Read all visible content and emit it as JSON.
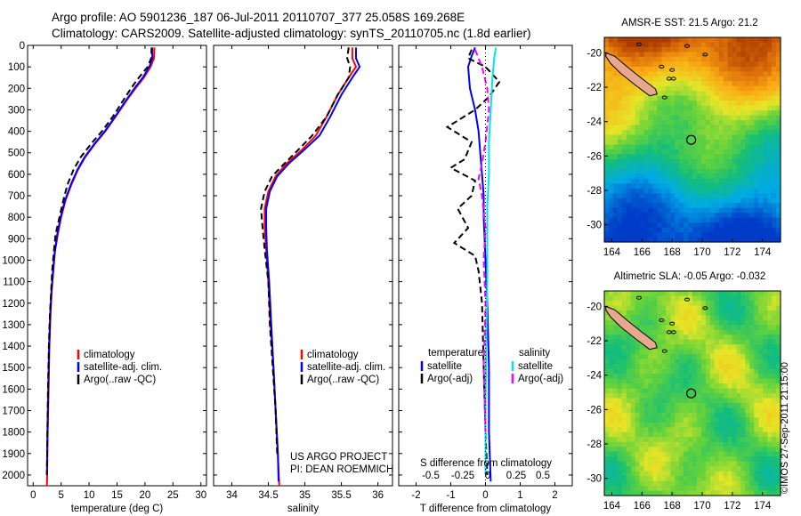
{
  "header": {
    "line1": "Argo profile: AO 5901236_187 06-Jul-2011 20110707_377 25.058S 169.268E",
    "line2": "Climatology: CARS2009. Satellite-adjusted climatology: synTS_20110705.nc (1.8d earlier)"
  },
  "credit": "©IMOS 27-Sep-2011 21:15:00",
  "colors": {
    "climatology": "#ff0000",
    "satellite": "#0000ff",
    "argo": "#000000",
    "salinity_satellite": "#00e5ee",
    "salinity_argo": "#ff00ff",
    "land": "#e8a890"
  },
  "chart_data": [
    {
      "type": "line",
      "panel": "temperature",
      "xlabel": "temperature (deg C)",
      "ylabel": "",
      "xlim": [
        -1,
        31
      ],
      "ylim": [
        2050,
        0
      ],
      "xticks": [
        "0",
        "5",
        "10",
        "15",
        "20",
        "25",
        "30"
      ],
      "yticks": [
        "0",
        "100",
        "200",
        "300",
        "400",
        "500",
        "600",
        "700",
        "800",
        "900",
        "1000",
        "1100",
        "1200",
        "1300",
        "1400",
        "1500",
        "1600",
        "1700",
        "1800",
        "1900",
        "2000"
      ],
      "legend": [
        "climatology",
        "satellite-adj. clim.",
        "Argo(..raw -QC)"
      ],
      "series": [
        {
          "name": "climatology",
          "style": "solid",
          "points": [
            [
              21.7,
              10
            ],
            [
              21.6,
              60
            ],
            [
              21.0,
              100
            ],
            [
              19.8,
              150
            ],
            [
              18.3,
              200
            ],
            [
              16.6,
              260
            ],
            [
              14.8,
              330
            ],
            [
              12.9,
              400
            ],
            [
              11.0,
              460
            ],
            [
              9.3,
              520
            ],
            [
              8.0,
              580
            ],
            [
              6.8,
              650
            ],
            [
              5.8,
              720
            ],
            [
              5.0,
              800
            ],
            [
              4.4,
              880
            ],
            [
              3.9,
              960
            ],
            [
              3.6,
              1050
            ],
            [
              3.3,
              1150
            ],
            [
              3.1,
              1250
            ],
            [
              2.9,
              1400
            ],
            [
              2.75,
              1600
            ],
            [
              2.6,
              1800
            ],
            [
              2.5,
              2000
            ],
            [
              2.45,
              2050
            ]
          ]
        },
        {
          "name": "satellite-adj. clim.",
          "style": "solid",
          "points": [
            [
              21.3,
              10
            ],
            [
              21.3,
              60
            ],
            [
              20.8,
              100
            ],
            [
              19.6,
              150
            ],
            [
              18.1,
              200
            ],
            [
              16.5,
              260
            ],
            [
              14.7,
              330
            ],
            [
              12.8,
              400
            ],
            [
              10.9,
              460
            ],
            [
              9.2,
              520
            ],
            [
              7.9,
              580
            ],
            [
              6.7,
              650
            ],
            [
              5.7,
              720
            ],
            [
              4.9,
              800
            ],
            [
              4.3,
              880
            ],
            [
              3.85,
              960
            ],
            [
              3.55,
              1050
            ],
            [
              3.25,
              1150
            ],
            [
              3.05,
              1250
            ],
            [
              2.85,
              1400
            ],
            [
              2.7,
              1600
            ],
            [
              2.55,
              1800
            ],
            [
              2.45,
              2000
            ]
          ]
        },
        {
          "name": "Argo(..raw -QC)",
          "style": "dashed",
          "points": [
            [
              21.2,
              10
            ],
            [
              21.1,
              60
            ],
            [
              20.5,
              100
            ],
            [
              18.9,
              150
            ],
            [
              17.5,
              200
            ],
            [
              16.0,
              260
            ],
            [
              14.3,
              330
            ],
            [
              12.3,
              400
            ],
            [
              10.3,
              460
            ],
            [
              8.5,
              520
            ],
            [
              7.2,
              580
            ],
            [
              6.1,
              650
            ],
            [
              5.4,
              720
            ],
            [
              4.7,
              800
            ],
            [
              4.0,
              880
            ],
            [
              3.7,
              960
            ],
            [
              3.4,
              1050
            ],
            [
              3.2,
              1150
            ],
            [
              3.0,
              1250
            ],
            [
              2.8,
              1400
            ],
            [
              2.65,
              1600
            ],
            [
              2.55,
              1800
            ],
            [
              2.45,
              2000
            ]
          ]
        }
      ]
    },
    {
      "type": "line",
      "panel": "salinity",
      "xlabel": "salinity",
      "xlim": [
        33.75,
        36.2
      ],
      "ylim": [
        2050,
        0
      ],
      "xticks": [
        "34",
        "34.5",
        "35",
        "35.5",
        "36"
      ],
      "legend": [
        "climatology",
        "satellite-adj. clim.",
        "Argo(..raw -QC)"
      ],
      "annotation": [
        "US ARGO PROJECT",
        "PI: DEAN ROEMMICH"
      ],
      "series": [
        {
          "name": "climatology",
          "style": "solid",
          "points": [
            [
              35.65,
              10
            ],
            [
              35.65,
              60
            ],
            [
              35.7,
              100
            ],
            [
              35.6,
              150
            ],
            [
              35.45,
              230
            ],
            [
              35.3,
              330
            ],
            [
              35.15,
              420
            ],
            [
              34.95,
              490
            ],
            [
              34.75,
              550
            ],
            [
              34.6,
              610
            ],
            [
              34.5,
              680
            ],
            [
              34.45,
              760
            ],
            [
              34.45,
              850
            ],
            [
              34.47,
              950
            ],
            [
              34.5,
              1100
            ],
            [
              34.53,
              1300
            ],
            [
              34.57,
              1500
            ],
            [
              34.6,
              1700
            ],
            [
              34.63,
              1900
            ],
            [
              34.65,
              2050
            ]
          ]
        },
        {
          "name": "satellite-adj. clim.",
          "style": "solid",
          "points": [
            [
              35.7,
              10
            ],
            [
              35.7,
              60
            ],
            [
              35.75,
              100
            ],
            [
              35.65,
              150
            ],
            [
              35.5,
              230
            ],
            [
              35.35,
              330
            ],
            [
              35.2,
              420
            ],
            [
              34.98,
              490
            ],
            [
              34.78,
              550
            ],
            [
              34.62,
              610
            ],
            [
              34.52,
              680
            ],
            [
              34.47,
              760
            ],
            [
              34.47,
              850
            ],
            [
              34.48,
              950
            ],
            [
              34.51,
              1100
            ],
            [
              34.54,
              1300
            ],
            [
              34.57,
              1500
            ],
            [
              34.6,
              1700
            ],
            [
              34.63,
              1900
            ],
            [
              34.64,
              2030
            ]
          ]
        },
        {
          "name": "Argo(..raw -QC)",
          "style": "dashed",
          "points": [
            [
              35.6,
              10
            ],
            [
              35.58,
              60
            ],
            [
              35.62,
              100
            ],
            [
              35.6,
              150
            ],
            [
              35.45,
              230
            ],
            [
              35.3,
              330
            ],
            [
              35.1,
              420
            ],
            [
              34.9,
              490
            ],
            [
              34.72,
              550
            ],
            [
              34.55,
              610
            ],
            [
              34.45,
              680
            ],
            [
              34.4,
              760
            ],
            [
              34.42,
              850
            ],
            [
              34.45,
              950
            ],
            [
              34.5,
              1100
            ],
            [
              34.52,
              1300
            ],
            [
              34.56,
              1500
            ],
            [
              34.6,
              1700
            ],
            [
              34.62,
              1900
            ]
          ]
        }
      ]
    },
    {
      "type": "line",
      "panel": "difference",
      "xlabel": "T difference from climatology",
      "xlabel2": "S difference from climatology",
      "xlim": [
        -2.5,
        2.5
      ],
      "ylim": [
        2050,
        0
      ],
      "xticks": [
        "-2",
        "-1",
        "0",
        "1",
        "2"
      ],
      "xticks_s": [
        "-0.5",
        "-0.25",
        "0",
        "0.25",
        "0.5"
      ],
      "legend_groups": [
        {
          "heading": "temperature",
          "items": [
            "satellite",
            "Argo(-adj)"
          ]
        },
        {
          "heading": "salinity",
          "items": [
            "satellite",
            "Argo(-adj)"
          ]
        }
      ],
      "series": [
        {
          "name": "T satellite",
          "style": "solid",
          "points": [
            [
              -0.3,
              10
            ],
            [
              -0.4,
              50
            ],
            [
              -0.5,
              100
            ],
            [
              -0.45,
              200
            ],
            [
              -0.3,
              300
            ],
            [
              -0.2,
              400
            ],
            [
              -0.15,
              500
            ],
            [
              -0.1,
              600
            ],
            [
              -0.05,
              700
            ],
            [
              -0.05,
              800
            ],
            [
              0.0,
              1000
            ],
            [
              0.05,
              1200
            ],
            [
              0.1,
              1500
            ],
            [
              0.1,
              1800
            ],
            [
              0.15,
              2030
            ]
          ]
        },
        {
          "name": "T Argo(-adj)",
          "style": "dashed",
          "points": [
            [
              -0.4,
              20
            ],
            [
              -0.5,
              60
            ],
            [
              0.0,
              100
            ],
            [
              0.4,
              170
            ],
            [
              0.1,
              240
            ],
            [
              -0.3,
              300
            ],
            [
              -1.1,
              380
            ],
            [
              -0.4,
              450
            ],
            [
              -0.6,
              530
            ],
            [
              -1.0,
              570
            ],
            [
              -0.3,
              630
            ],
            [
              -0.4,
              700
            ],
            [
              -0.8,
              760
            ],
            [
              -0.5,
              850
            ],
            [
              -0.9,
              920
            ],
            [
              -0.3,
              980
            ],
            [
              -0.2,
              1050
            ],
            [
              -0.1,
              1200
            ],
            [
              -0.05,
              1500
            ],
            [
              0.0,
              1800
            ],
            [
              0.05,
              2000
            ]
          ]
        },
        {
          "name": "S satellite",
          "style": "solid",
          "points": [
            [
              0.3,
              10
            ],
            [
              0.25,
              60
            ],
            [
              0.2,
              150
            ],
            [
              0.15,
              300
            ],
            [
              0.1,
              450
            ],
            [
              0.1,
              600
            ],
            [
              0.05,
              750
            ],
            [
              0.05,
              900
            ],
            [
              0.05,
              1100
            ],
            [
              0.02,
              1400
            ],
            [
              0.0,
              1700
            ],
            [
              0.0,
              2000
            ]
          ]
        },
        {
          "name": "S Argo(-adj)",
          "style": "dashed",
          "points": [
            [
              -0.3,
              20
            ],
            [
              -0.1,
              100
            ],
            [
              0.05,
              200
            ],
            [
              0.1,
              300
            ],
            [
              0.0,
              450
            ],
            [
              -0.1,
              550
            ],
            [
              -0.2,
              620
            ],
            [
              -0.1,
              700
            ],
            [
              0.0,
              850
            ],
            [
              -0.05,
              1000
            ],
            [
              0.0,
              1200
            ],
            [
              -0.05,
              1500
            ],
            [
              0.0,
              1800
            ]
          ]
        }
      ]
    },
    {
      "type": "heatmap",
      "panel": "sst-map",
      "title": "AMSR-E SST: 21.5 Argo: 21.2",
      "xticks": [
        "164",
        "166",
        "168",
        "170",
        "172",
        "174"
      ],
      "yticks": [
        "-20",
        "-22",
        "-24",
        "-26",
        "-28",
        "-30"
      ],
      "xlim": [
        163.5,
        175.2
      ],
      "ylim": [
        -31.0,
        -19.1
      ],
      "marker": {
        "lon": 169.268,
        "lat": -25.058
      }
    },
    {
      "type": "heatmap",
      "panel": "sla-map",
      "title": "Altimetric SLA: -0.05 Argo: -0.032",
      "xticks": [
        "164",
        "166",
        "168",
        "170",
        "172",
        "174"
      ],
      "yticks": [
        "-20",
        "-22",
        "-24",
        "-26",
        "-28",
        "-30"
      ],
      "xlim": [
        163.5,
        175.2
      ],
      "ylim": [
        -31.0,
        -19.1
      ],
      "marker": {
        "lon": 169.268,
        "lat": -25.058
      }
    }
  ]
}
